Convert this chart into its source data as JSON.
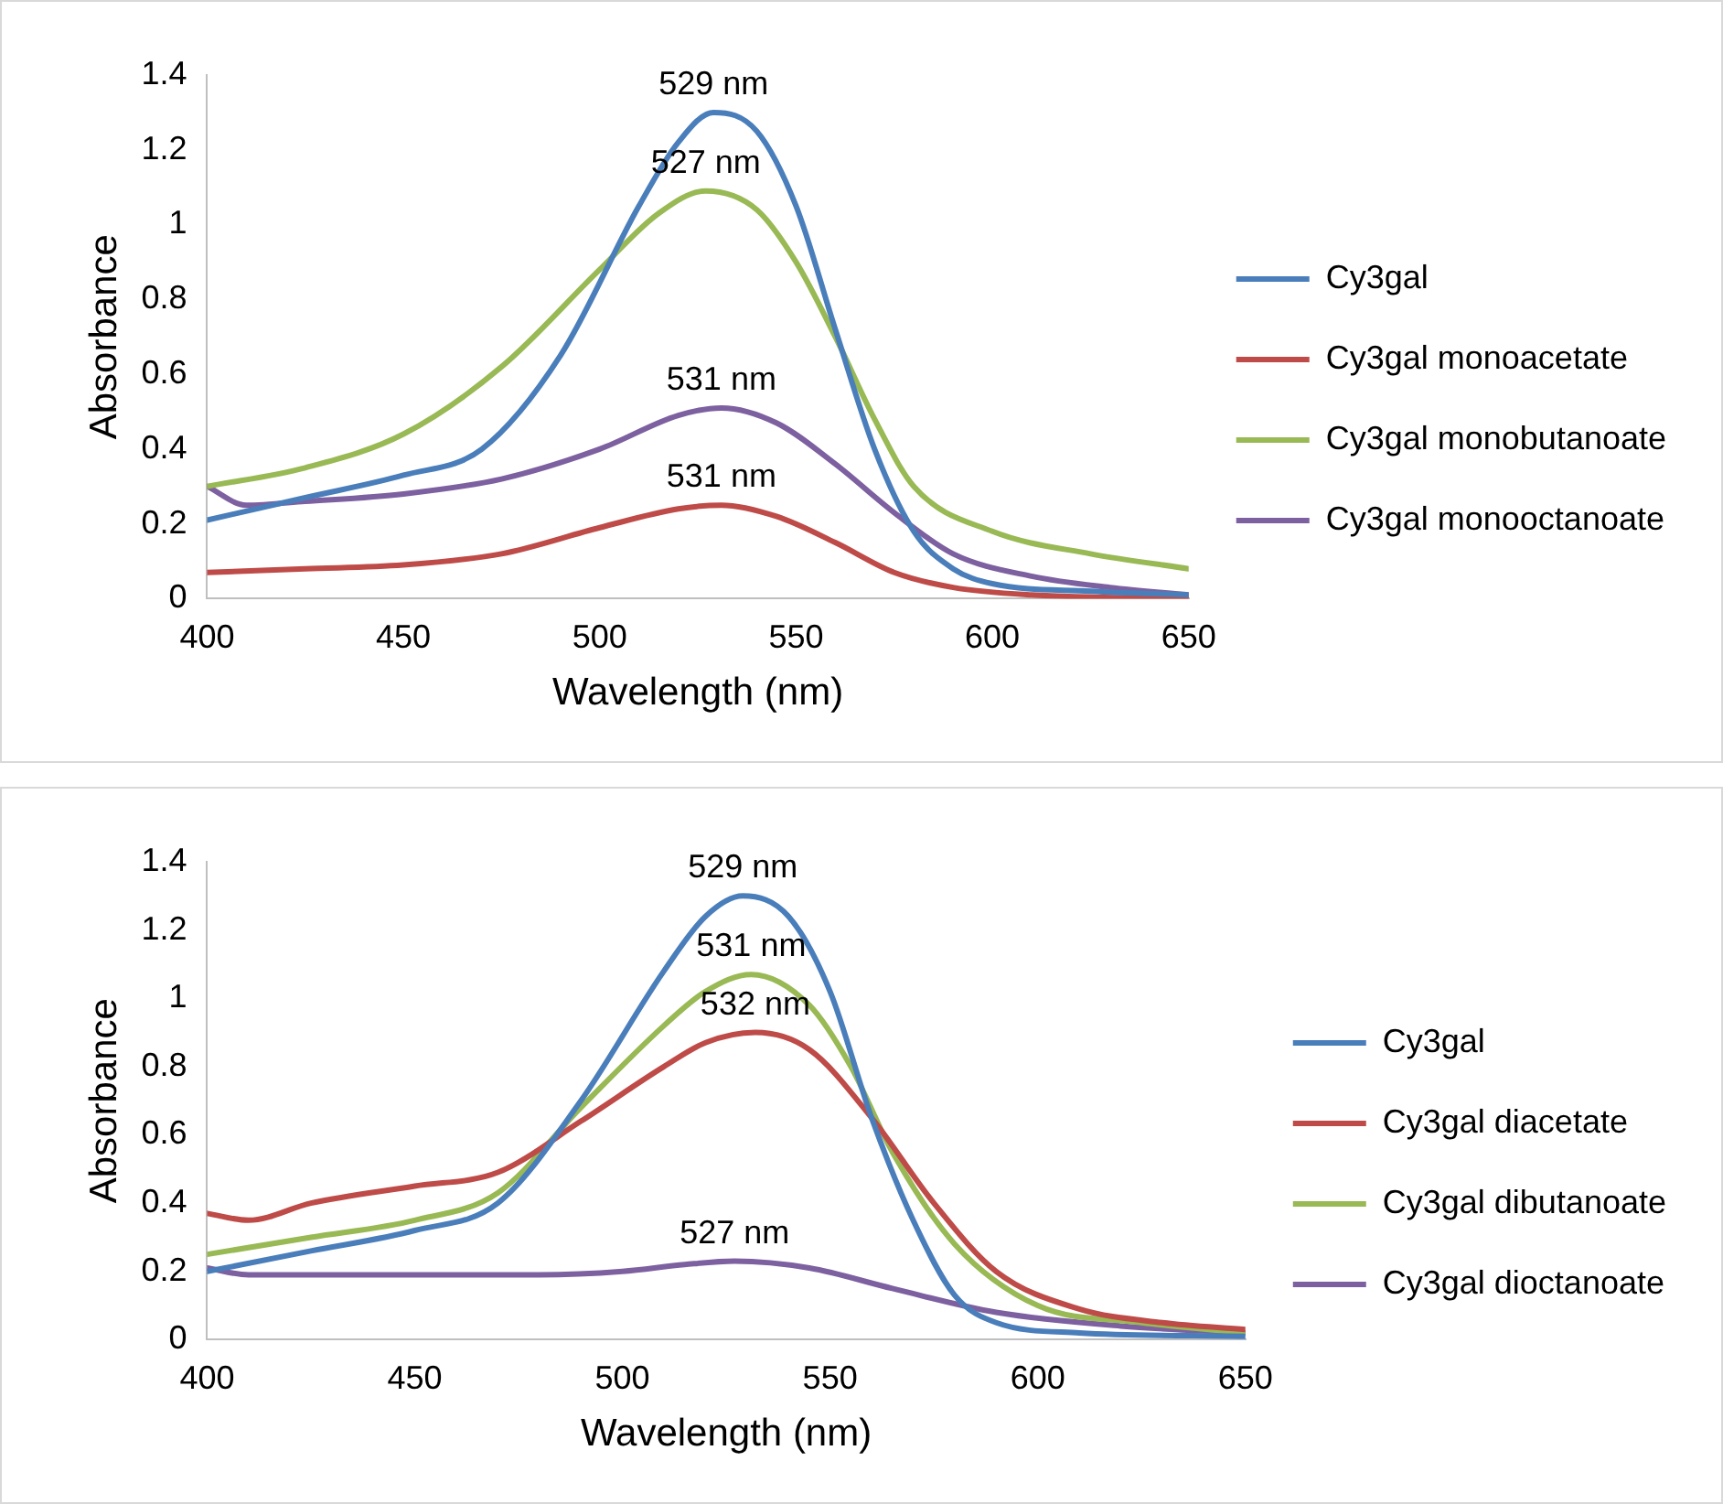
{
  "chart_data": [
    {
      "type": "line",
      "xlabel": "Wavelength (nm)",
      "ylabel": "Absorbance",
      "xlim": [
        400,
        650
      ],
      "xticks": [
        400,
        450,
        500,
        550,
        600,
        650
      ],
      "ylim": [
        0,
        1.4
      ],
      "yticks": [
        0,
        0.2,
        0.4,
        0.6,
        0.8,
        1,
        1.2,
        1.4
      ],
      "grid": false,
      "legend": "right",
      "marker": "none",
      "line_style": "solid",
      "series": [
        {
          "name": "Cy3gal",
          "color": "#4a7ebb",
          "x": [
            400,
            425,
            450,
            470,
            490,
            510,
            520,
            529,
            540,
            550,
            560,
            570,
            580,
            590,
            600,
            625,
            650
          ],
          "values": [
            0.21,
            0.27,
            0.33,
            0.4,
            0.65,
            1.05,
            1.22,
            1.3,
            1.25,
            1.05,
            0.72,
            0.4,
            0.18,
            0.08,
            0.04,
            0.02,
            0.01
          ]
        },
        {
          "name": "Cy3gal monoacetate",
          "color": "#be4b48",
          "x": [
            400,
            425,
            450,
            475,
            500,
            520,
            531,
            545,
            560,
            575,
            590,
            610,
            650
          ],
          "values": [
            0.07,
            0.08,
            0.09,
            0.12,
            0.19,
            0.24,
            0.25,
            0.22,
            0.15,
            0.07,
            0.03,
            0.01,
            0
          ]
        },
        {
          "name": "Cy3gal monobutanoate",
          "color": "#98b954",
          "x": [
            400,
            425,
            450,
            475,
            500,
            515,
            527,
            540,
            550,
            560,
            570,
            580,
            600,
            625,
            650
          ],
          "values": [
            0.3,
            0.35,
            0.44,
            0.62,
            0.88,
            1.03,
            1.09,
            1.04,
            0.9,
            0.7,
            0.48,
            0.3,
            0.18,
            0.12,
            0.08
          ]
        },
        {
          "name": "Cy3gal monooctanoate",
          "color": "#7d60a0",
          "x": [
            400,
            410,
            425,
            450,
            475,
            500,
            520,
            531,
            545,
            560,
            575,
            590,
            610,
            630,
            650
          ],
          "values": [
            0.3,
            0.25,
            0.26,
            0.28,
            0.32,
            0.4,
            0.49,
            0.51,
            0.47,
            0.36,
            0.23,
            0.12,
            0.06,
            0.03,
            0.01
          ]
        }
      ],
      "annotations": [
        {
          "text": "529 nm",
          "x": 529,
          "y": 1.3
        },
        {
          "text": "527 nm",
          "x": 527,
          "y": 1.09
        },
        {
          "text": "531 nm",
          "x": 531,
          "y": 0.51
        },
        {
          "text": "531 nm",
          "x": 531,
          "y": 0.25
        }
      ]
    },
    {
      "type": "line",
      "xlabel": "Wavelength (nm)",
      "ylabel": "Absorbance",
      "xlim": [
        400,
        650
      ],
      "xticks": [
        400,
        450,
        500,
        550,
        600,
        650
      ],
      "ylim": [
        0,
        1.4
      ],
      "yticks": [
        0,
        0.2,
        0.4,
        0.6,
        0.8,
        1,
        1.2,
        1.4
      ],
      "grid": false,
      "legend": "right",
      "marker": "none",
      "line_style": "solid",
      "series": [
        {
          "name": "Cy3gal",
          "color": "#4a7ebb",
          "x": [
            400,
            425,
            450,
            470,
            490,
            510,
            520,
            529,
            540,
            550,
            560,
            570,
            580,
            590,
            610,
            650
          ],
          "values": [
            0.2,
            0.26,
            0.32,
            0.4,
            0.7,
            1.08,
            1.24,
            1.3,
            1.24,
            1.02,
            0.65,
            0.35,
            0.13,
            0.05,
            0.02,
            0.01
          ]
        },
        {
          "name": "Cy3gal diacetate",
          "color": "#be4b48",
          "x": [
            400,
            410,
            425,
            450,
            470,
            490,
            510,
            520,
            532,
            545,
            560,
            575,
            590,
            610,
            630,
            650
          ],
          "values": [
            0.37,
            0.35,
            0.4,
            0.45,
            0.49,
            0.64,
            0.8,
            0.87,
            0.9,
            0.85,
            0.65,
            0.4,
            0.2,
            0.09,
            0.05,
            0.03
          ]
        },
        {
          "name": "Cy3gal dibutanoate",
          "color": "#98b954",
          "x": [
            400,
            425,
            450,
            470,
            490,
            510,
            520,
            531,
            545,
            555,
            565,
            580,
            600,
            625,
            650
          ],
          "values": [
            0.25,
            0.3,
            0.35,
            0.43,
            0.68,
            0.92,
            1.02,
            1.07,
            0.98,
            0.8,
            0.55,
            0.28,
            0.1,
            0.05,
            0.02
          ]
        },
        {
          "name": "Cy3gal dioctanoate",
          "color": "#7d60a0",
          "x": [
            400,
            410,
            450,
            480,
            500,
            515,
            527,
            545,
            565,
            590,
            620,
            650
          ],
          "values": [
            0.21,
            0.19,
            0.19,
            0.19,
            0.2,
            0.22,
            0.23,
            0.21,
            0.15,
            0.08,
            0.04,
            0.02
          ]
        }
      ],
      "annotations": [
        {
          "text": "529 nm",
          "x": 529,
          "y": 1.3
        },
        {
          "text": "531 nm",
          "x": 531,
          "y": 1.07
        },
        {
          "text": "532 nm",
          "x": 532,
          "y": 0.9
        },
        {
          "text": "527 nm",
          "x": 527,
          "y": 0.23
        }
      ]
    }
  ]
}
